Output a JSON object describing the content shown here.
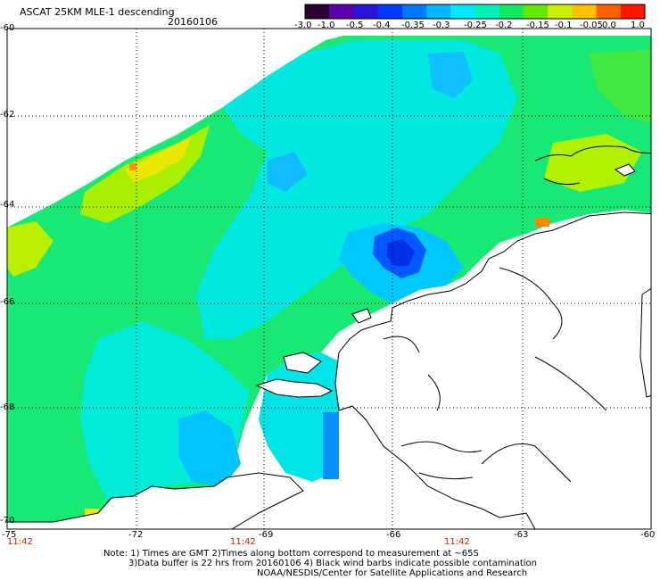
{
  "header": {
    "title": "ASCAT 25KM MLE-1 descending",
    "date": "20160106"
  },
  "colorbar": {
    "ticks": [
      "-3.0",
      "-1.0",
      "-0.5",
      "-0.4",
      "-0.35",
      "-0.3",
      "-0.25",
      "-0.2",
      "-0.15",
      "-0.1",
      "-0.05",
      "0.0",
      "1.0"
    ],
    "colors": [
      "#2a0030",
      "#5a00a8",
      "#2a14d8",
      "#0038ff",
      "#0078ff",
      "#00b4ff",
      "#00e8ff",
      "#00f0b8",
      "#10e860",
      "#60e800",
      "#c8f000",
      "#ffc000",
      "#ff6000",
      "#ff1400"
    ]
  },
  "axes": {
    "lat_labels": [
      "-60",
      "-62",
      "-64",
      "-66",
      "-68",
      "-70"
    ],
    "lon_labels": [
      "-75",
      "-72",
      "-69",
      "-66",
      "-63",
      "-60"
    ],
    "time_labels": [
      "11:42",
      "11:42",
      "11:42"
    ]
  },
  "notes": {
    "line1": "Note: 1) Times are GMT 2)Times along bottom correspond to measurement at ~65S",
    "line2": "3)Data buffer is 22 hrs from 20160106 4) Black wind barbs indicate possible contamination",
    "line3": "NOAA/NESDIS/Center for Satellite Applications and Research"
  },
  "colors": {
    "land": "#ffffff",
    "coast": "#000000",
    "grid": "#000000",
    "time_label": "#cc2200"
  }
}
